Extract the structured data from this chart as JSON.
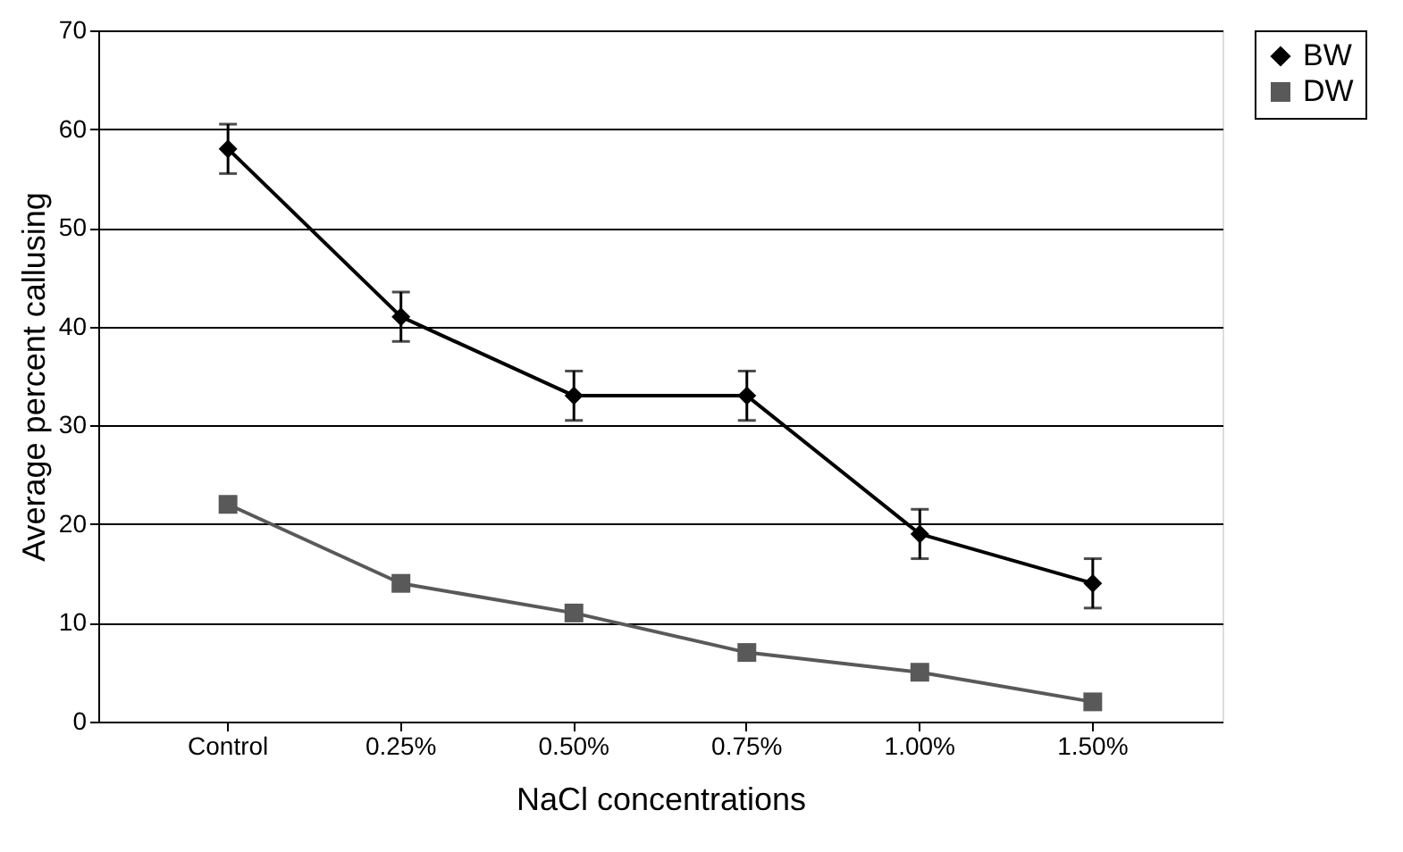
{
  "chart_data": {
    "type": "line",
    "xlabel": "NaCl concentrations",
    "ylabel": "Average percent callusing",
    "categories": [
      "Control",
      "0.25%",
      "0.50%",
      "0.75%",
      "1.00%",
      "1.50%"
    ],
    "series": [
      {
        "name": "BW",
        "color": "#000000",
        "marker": "diamond",
        "values": [
          58,
          41,
          33,
          33,
          19,
          14
        ],
        "errors": [
          2.5,
          2.5,
          2.5,
          2.5,
          2.5,
          2.5
        ]
      },
      {
        "name": "DW",
        "color": "#595959",
        "marker": "square",
        "values": [
          22,
          14,
          11,
          7,
          5,
          2
        ]
      }
    ],
    "ylim": [
      0,
      70
    ],
    "yticks": [
      0,
      10,
      20,
      30,
      40,
      50,
      60,
      70
    ],
    "grid": "y",
    "legend": "right",
    "line_style": "solid"
  }
}
